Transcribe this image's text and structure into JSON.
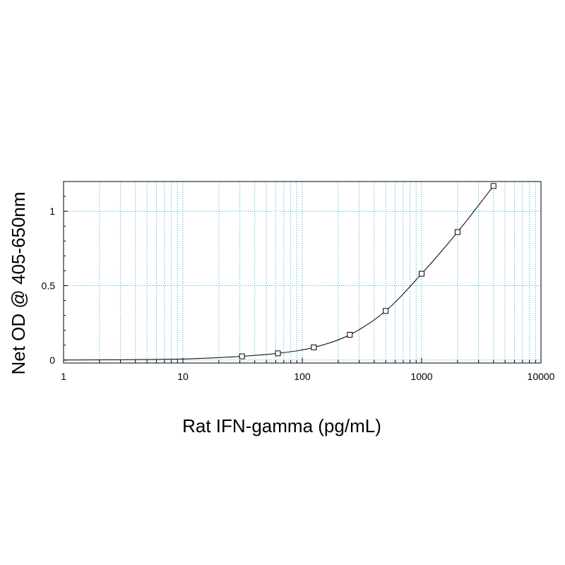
{
  "chart_data": {
    "type": "scatter",
    "xlabel": "Rat IFN-gamma (pg/mL)",
    "ylabel": "Net OD @ 405-650nm",
    "xscale": "log",
    "xlim": [
      1,
      10000
    ],
    "ylim": [
      -0.02,
      1.2
    ],
    "xticks": [
      1,
      10,
      100,
      1000,
      10000
    ],
    "xtick_labels": [
      "1",
      "10",
      "100",
      "1000",
      "10000"
    ],
    "yticks": [
      0,
      0.5,
      1
    ],
    "ytick_labels": [
      "0",
      "0.5",
      "1"
    ],
    "grid": true,
    "series": [
      {
        "x": [
          31.25,
          62.5,
          125,
          250,
          500,
          1000,
          2000,
          4000
        ],
        "y": [
          0.025,
          0.045,
          0.085,
          0.17,
          0.33,
          0.58,
          0.86,
          1.17
        ],
        "marker": "open-square",
        "fit_curve": true
      }
    ],
    "colors": {
      "grid": "#29a9d6",
      "curve": "#000000",
      "axis": "#000000"
    }
  }
}
